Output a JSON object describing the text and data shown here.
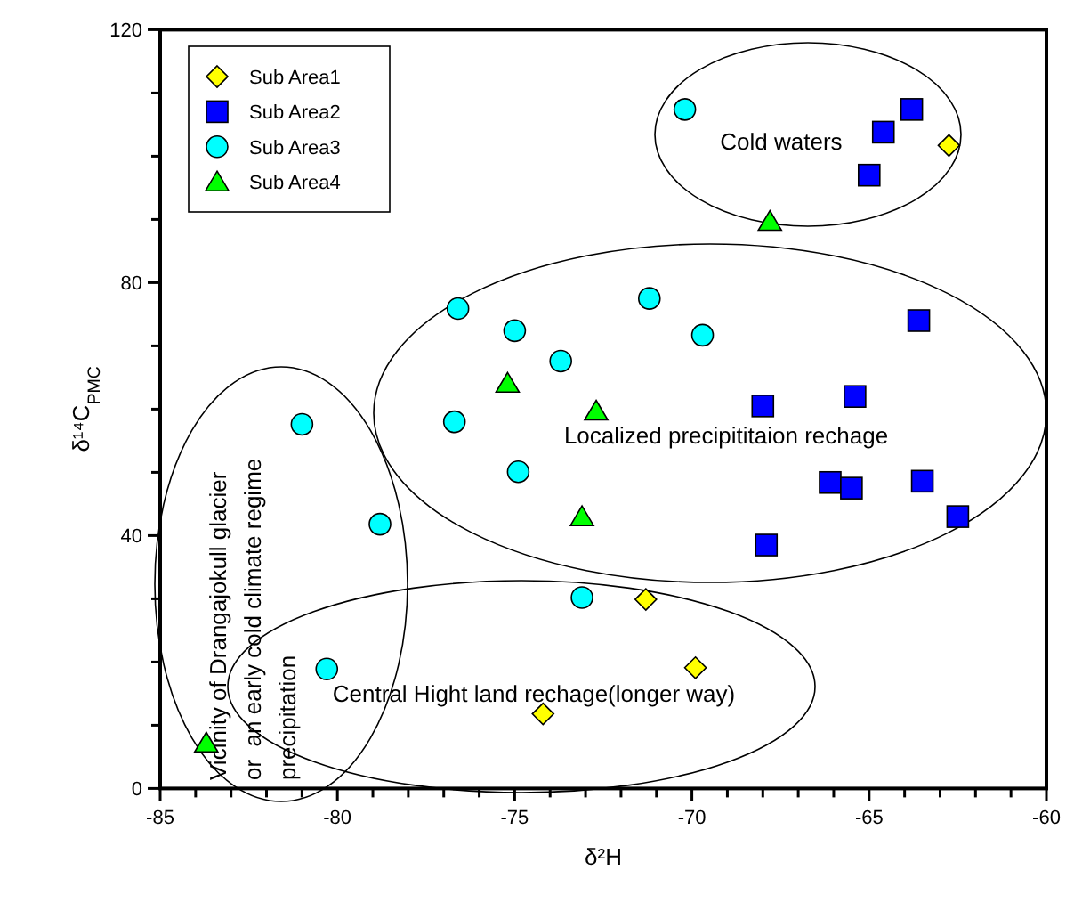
{
  "chart_data": {
    "type": "scatter",
    "xlabel": "δ²H",
    "ylabel": "δ¹⁴C$_{PMC}$",
    "xlim": [
      -85,
      -60
    ],
    "ylim": [
      0,
      120
    ],
    "xticks": [
      -85,
      {
        "value": -84,
        "label": null
      },
      {
        "value": -83,
        "label": null
      },
      {
        "value": -82,
        "label": null
      },
      {
        "value": -81,
        "label": null
      },
      -80,
      {
        "value": -79,
        "label": null
      },
      {
        "value": -78,
        "label": null
      },
      {
        "value": -77,
        "label": null
      },
      {
        "value": -76,
        "label": null
      },
      -75,
      {
        "value": -74,
        "label": null
      },
      {
        "value": -73,
        "label": null
      },
      {
        "value": -72,
        "label": null
      },
      {
        "value": -71,
        "label": null
      },
      -70,
      {
        "value": -69,
        "label": null
      },
      {
        "value": -68,
        "label": null
      },
      {
        "value": -67,
        "label": null
      },
      {
        "value": -66,
        "label": null
      },
      -65,
      {
        "value": -64,
        "label": null
      },
      {
        "value": -63,
        "label": null
      },
      {
        "value": -62,
        "label": null
      },
      {
        "value": -61,
        "label": null
      },
      -60
    ],
    "yticks": [
      0,
      {
        "value": 10,
        "label": null
      },
      {
        "value": 20,
        "label": null
      },
      {
        "value": 30,
        "label": null
      },
      40,
      {
        "value": 50,
        "label": null
      },
      {
        "value": 60,
        "label": null
      },
      {
        "value": 70,
        "label": null
      },
      80,
      {
        "value": 90,
        "label": null
      },
      {
        "value": 100,
        "label": null
      },
      {
        "value": 110,
        "label": null
      },
      120
    ],
    "grid": false,
    "legend": "top left",
    "series": [
      {
        "name": "Sub Area1",
        "color": "#ffff00",
        "marker": "diamond",
        "x": [
          -62.75,
          -71.3,
          -69.9,
          -74.2
        ],
        "values": [
          101.7,
          29.9,
          19.1,
          11.8
        ]
      },
      {
        "name": "Sub Area2",
        "color": "#0000ff",
        "marker": "square",
        "x": [
          -63.8,
          -64.6,
          -65.0,
          -63.6,
          -68.0,
          -65.4,
          -66.1,
          -65.5,
          -63.5,
          -62.5,
          -67.9
        ],
        "values": [
          107.4,
          103.8,
          97.0,
          74.0,
          60.5,
          62.0,
          48.4,
          47.5,
          48.6,
          43.0,
          38.5
        ]
      },
      {
        "name": "Sub Area3",
        "color": "#00ffff",
        "marker": "circle",
        "x": [
          -70.2,
          -76.6,
          -75.0,
          -71.2,
          -69.7,
          -73.7,
          -76.7,
          -81.0,
          -74.9,
          -78.8,
          -73.1,
          -80.3
        ],
        "values": [
          107.4,
          75.9,
          72.4,
          77.5,
          71.7,
          67.6,
          58.0,
          57.6,
          50.1,
          41.8,
          30.2,
          18.9
        ]
      },
      {
        "name": "Sub Area4",
        "color": "#00ff00",
        "marker": "triangle",
        "x": [
          -67.8,
          -75.2,
          -72.7,
          -73.1,
          -83.7
        ],
        "values": [
          89.7,
          64.1,
          59.7,
          43.0,
          7.2
        ]
      }
    ],
    "annotations": [
      "Cold waters",
      "Localized precipititaion rechage",
      "Central Hight land rechage(longer way)",
      "Vicinity of Drangajokull glacier\nor  an early cold climate regime\nprecipitation"
    ]
  }
}
